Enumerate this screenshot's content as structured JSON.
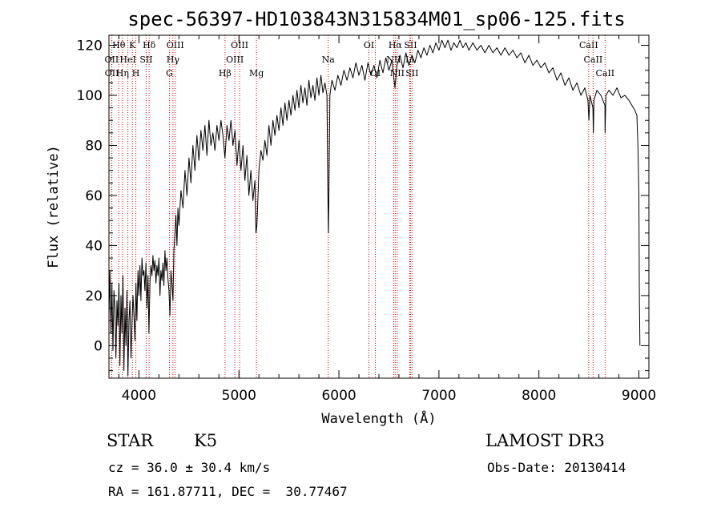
{
  "chart_data": {
    "type": "line",
    "title": "spec-56397-HD103843N315834M01_sp06-125.fits",
    "xlabel": "Wavelength (Å)",
    "ylabel": "Flux (relative)",
    "xlim": [
      3700,
      9100
    ],
    "ylim": [
      -13,
      124
    ],
    "xticks": [
      4000,
      5000,
      6000,
      7000,
      8000,
      9000
    ],
    "yticks": [
      0,
      20,
      40,
      60,
      80,
      100,
      120
    ],
    "grid": false,
    "series": [
      {
        "values": [
          [
            3700,
            12
          ],
          [
            3710,
            30
          ],
          [
            3720,
            5
          ],
          [
            3730,
            25
          ],
          [
            3740,
            -2
          ],
          [
            3750,
            22
          ],
          [
            3760,
            15
          ],
          [
            3770,
            -5
          ],
          [
            3780,
            18
          ],
          [
            3790,
            8
          ],
          [
            3800,
            25
          ],
          [
            3810,
            -8
          ],
          [
            3820,
            20
          ],
          [
            3830,
            5
          ],
          [
            3840,
            28
          ],
          [
            3850,
            -10
          ],
          [
            3860,
            15
          ],
          [
            3870,
            0
          ],
          [
            3880,
            22
          ],
          [
            3890,
            -12
          ],
          [
            3900,
            10
          ],
          [
            3910,
            18
          ],
          [
            3920,
            -5
          ],
          [
            3930,
            8
          ],
          [
            3940,
            20
          ],
          [
            3950,
            12
          ],
          [
            3960,
            2
          ],
          [
            3970,
            25
          ],
          [
            3980,
            10
          ],
          [
            3990,
            30
          ],
          [
            4000,
            20
          ],
          [
            4010,
            32
          ],
          [
            4020,
            18
          ],
          [
            4030,
            35
          ],
          [
            4040,
            28
          ],
          [
            4050,
            30
          ],
          [
            4060,
            22
          ],
          [
            4070,
            33
          ],
          [
            4080,
            15
          ],
          [
            4090,
            28
          ],
          [
            4100,
            5
          ],
          [
            4110,
            25
          ],
          [
            4120,
            32
          ],
          [
            4130,
            28
          ],
          [
            4140,
            36
          ],
          [
            4150,
            30
          ],
          [
            4160,
            34
          ],
          [
            4170,
            25
          ],
          [
            4180,
            32
          ],
          [
            4190,
            28
          ],
          [
            4200,
            35
          ],
          [
            4210,
            20
          ],
          [
            4220,
            30
          ],
          [
            4230,
            26
          ],
          [
            4240,
            33
          ],
          [
            4250,
            24
          ],
          [
            4260,
            38
          ],
          [
            4270,
            30
          ],
          [
            4280,
            35
          ],
          [
            4290,
            27
          ],
          [
            4300,
            22
          ],
          [
            4310,
            12
          ],
          [
            4320,
            30
          ],
          [
            4330,
            25
          ],
          [
            4340,
            18
          ],
          [
            4350,
            38
          ],
          [
            4360,
            45
          ],
          [
            4370,
            52
          ],
          [
            4380,
            40
          ],
          [
            4390,
            55
          ],
          [
            4400,
            48
          ],
          [
            4420,
            62
          ],
          [
            4440,
            55
          ],
          [
            4460,
            70
          ],
          [
            4480,
            60
          ],
          [
            4500,
            75
          ],
          [
            4520,
            65
          ],
          [
            4540,
            80
          ],
          [
            4560,
            70
          ],
          [
            4580,
            84
          ],
          [
            4600,
            74
          ],
          [
            4620,
            86
          ],
          [
            4640,
            78
          ],
          [
            4660,
            88
          ],
          [
            4680,
            76
          ],
          [
            4700,
            90
          ],
          [
            4720,
            80
          ],
          [
            4740,
            85
          ],
          [
            4760,
            78
          ],
          [
            4780,
            88
          ],
          [
            4800,
            82
          ],
          [
            4820,
            90
          ],
          [
            4840,
            84
          ],
          [
            4860,
            75
          ],
          [
            4880,
            88
          ],
          [
            4900,
            82
          ],
          [
            4920,
            90
          ],
          [
            4940,
            80
          ],
          [
            4960,
            86
          ],
          [
            4980,
            72
          ],
          [
            5000,
            82
          ],
          [
            5020,
            70
          ],
          [
            5040,
            80
          ],
          [
            5060,
            66
          ],
          [
            5080,
            76
          ],
          [
            5100,
            60
          ],
          [
            5120,
            70
          ],
          [
            5140,
            58
          ],
          [
            5160,
            66
          ],
          [
            5170,
            45
          ],
          [
            5180,
            48
          ],
          [
            5200,
            70
          ],
          [
            5220,
            78
          ],
          [
            5240,
            74
          ],
          [
            5260,
            82
          ],
          [
            5280,
            76
          ],
          [
            5300,
            88
          ],
          [
            5320,
            80
          ],
          [
            5340,
            90
          ],
          [
            5360,
            84
          ],
          [
            5380,
            92
          ],
          [
            5400,
            86
          ],
          [
            5420,
            95
          ],
          [
            5440,
            88
          ],
          [
            5460,
            97
          ],
          [
            5480,
            90
          ],
          [
            5500,
            98
          ],
          [
            5520,
            92
          ],
          [
            5540,
            100
          ],
          [
            5560,
            94
          ],
          [
            5580,
            102
          ],
          [
            5600,
            95
          ],
          [
            5620,
            104
          ],
          [
            5640,
            97
          ],
          [
            5660,
            103
          ],
          [
            5680,
            96
          ],
          [
            5700,
            106
          ],
          [
            5720,
            99
          ],
          [
            5740,
            104
          ],
          [
            5760,
            98
          ],
          [
            5780,
            107
          ],
          [
            5800,
            100
          ],
          [
            5820,
            108
          ],
          [
            5840,
            101
          ],
          [
            5860,
            105
          ],
          [
            5880,
            100
          ],
          [
            5890,
            60
          ],
          [
            5895,
            45
          ],
          [
            5900,
            62
          ],
          [
            5910,
            100
          ],
          [
            5930,
            106
          ],
          [
            5960,
            102
          ],
          [
            5990,
            108
          ],
          [
            6020,
            104
          ],
          [
            6050,
            110
          ],
          [
            6080,
            106
          ],
          [
            6110,
            111
          ],
          [
            6140,
            107
          ],
          [
            6170,
            113
          ],
          [
            6200,
            108
          ],
          [
            6230,
            112
          ],
          [
            6260,
            106
          ],
          [
            6290,
            113
          ],
          [
            6320,
            108
          ],
          [
            6350,
            112
          ],
          [
            6380,
            107
          ],
          [
            6410,
            114
          ],
          [
            6440,
            109
          ],
          [
            6470,
            115
          ],
          [
            6500,
            110
          ],
          [
            6530,
            114
          ],
          [
            6560,
            103
          ],
          [
            6580,
            112
          ],
          [
            6610,
            116
          ],
          [
            6640,
            111
          ],
          [
            6670,
            117
          ],
          [
            6700,
            112
          ],
          [
            6730,
            116
          ],
          [
            6760,
            113
          ],
          [
            6790,
            118
          ],
          [
            6820,
            115
          ],
          [
            6850,
            119
          ],
          [
            6880,
            116
          ],
          [
            6910,
            120
          ],
          [
            6940,
            117
          ],
          [
            6970,
            121
          ],
          [
            7000,
            118
          ],
          [
            7030,
            122
          ],
          [
            7060,
            119
          ],
          [
            7090,
            122
          ],
          [
            7120,
            118
          ],
          [
            7150,
            121
          ],
          [
            7180,
            119
          ],
          [
            7210,
            122
          ],
          [
            7240,
            119
          ],
          [
            7270,
            121
          ],
          [
            7300,
            118
          ],
          [
            7340,
            121
          ],
          [
            7380,
            118
          ],
          [
            7420,
            120
          ],
          [
            7460,
            117
          ],
          [
            7500,
            120
          ],
          [
            7540,
            117
          ],
          [
            7580,
            119
          ],
          [
            7620,
            116
          ],
          [
            7660,
            119
          ],
          [
            7700,
            116
          ],
          [
            7740,
            118
          ],
          [
            7780,
            115
          ],
          [
            7820,
            117
          ],
          [
            7860,
            113
          ],
          [
            7900,
            116
          ],
          [
            7940,
            112
          ],
          [
            7980,
            114
          ],
          [
            8020,
            111
          ],
          [
            8060,
            113
          ],
          [
            8100,
            109
          ],
          [
            8140,
            111
          ],
          [
            8180,
            106
          ],
          [
            8220,
            109
          ],
          [
            8260,
            104
          ],
          [
            8300,
            107
          ],
          [
            8340,
            102
          ],
          [
            8380,
            105
          ],
          [
            8420,
            100
          ],
          [
            8460,
            103
          ],
          [
            8490,
            98
          ],
          [
            8500,
            90
          ],
          [
            8510,
            100
          ],
          [
            8540,
            95
          ],
          [
            8545,
            85
          ],
          [
            8550,
            98
          ],
          [
            8580,
            102
          ],
          [
            8620,
            100
          ],
          [
            8660,
            96
          ],
          [
            8662,
            85
          ],
          [
            8670,
            100
          ],
          [
            8700,
            102
          ],
          [
            8740,
            100
          ],
          [
            8780,
            103
          ],
          [
            8820,
            99
          ],
          [
            8860,
            100
          ],
          [
            8900,
            98
          ],
          [
            8930,
            96
          ],
          [
            8960,
            94
          ],
          [
            8980,
            92
          ],
          [
            8990,
            80
          ],
          [
            9000,
            60
          ],
          [
            9005,
            20
          ],
          [
            9010,
            0
          ]
        ]
      }
    ],
    "lines": [
      {
        "label": "Hθ",
        "x": 3798,
        "row": 0
      },
      {
        "label": "OII",
        "x": 3727,
        "row": 1
      },
      {
        "label": "OII",
        "x": 3729,
        "row": 2
      },
      {
        "label": "K",
        "x": 3934,
        "row": 0
      },
      {
        "label": "HeI",
        "x": 3889,
        "row": 1
      },
      {
        "label": "Hη",
        "x": 3835,
        "row": 2
      },
      {
        "label": "Hδ",
        "x": 4102,
        "row": 0
      },
      {
        "label": "SII",
        "x": 4072,
        "row": 1
      },
      {
        "label": "H",
        "x": 3969,
        "row": 2
      },
      {
        "label": "OIII",
        "x": 4363,
        "row": 0
      },
      {
        "label": "Hγ",
        "x": 4340,
        "row": 1
      },
      {
        "label": "G",
        "x": 4305,
        "row": 2
      },
      {
        "label": "OIII",
        "x": 5007,
        "row": 0
      },
      {
        "label": "OIII",
        "x": 4959,
        "row": 1
      },
      {
        "label": "Hβ",
        "x": 4861,
        "row": 2
      },
      {
        "label": "Mg",
        "x": 5175,
        "row": 2
      },
      {
        "label": "Na",
        "x": 5893,
        "row": 1
      },
      {
        "label": "OI",
        "x": 6300,
        "row": 0
      },
      {
        "label": "OI",
        "x": 6364,
        "row": 2
      },
      {
        "label": "Hα",
        "x": 6563,
        "row": 0
      },
      {
        "label": "NII",
        "x": 6548,
        "row": 1
      },
      {
        "label": "NII",
        "x": 6583,
        "row": 2
      },
      {
        "label": "SII",
        "x": 6716,
        "row": 0
      },
      {
        "label": "Li",
        "x": 6708,
        "row": 1
      },
      {
        "label": "SII",
        "x": 6731,
        "row": 2
      },
      {
        "label": "CaII",
        "x": 8498,
        "row": 0
      },
      {
        "label": "CaII",
        "x": 8542,
        "row": 1
      },
      {
        "label": "CaII",
        "x": 8662,
        "row": 2
      }
    ]
  },
  "info": {
    "object_type": "STAR",
    "subclass": "K5",
    "survey": "LAMOST DR3",
    "cz": "cz = 36.0 ± 30.4 km/s",
    "obs_date": "Obs-Date: 20130414",
    "coords": "RA = 161.87711, DEC =  30.77467"
  }
}
